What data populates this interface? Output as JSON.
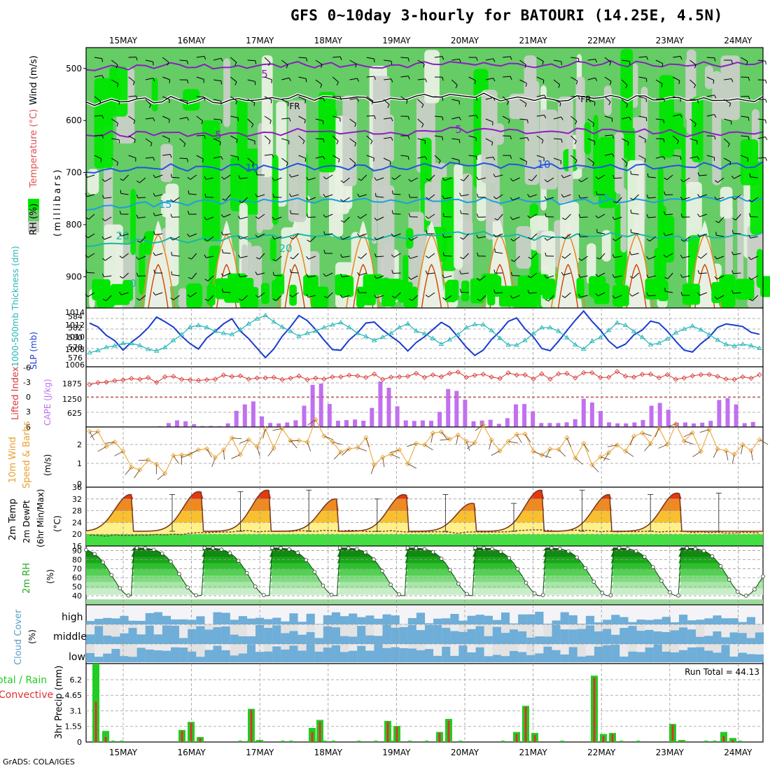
{
  "title": "GFS 0~10day 3-hourly for BATOURI (14.25E, 4.5N)",
  "credit": "GrADS: COLA/IGES",
  "date_labels": [
    "15MAY",
    "16MAY",
    "17MAY",
    "18MAY",
    "19MAY",
    "20MAY",
    "21MAY",
    "22MAY",
    "23MAY",
    "24MAY"
  ],
  "colors": {
    "rh_bright": "#00e600",
    "rh_mid": "#66cc66",
    "rh_low": "#c8cfc6",
    "rh_pale": "#e9f0e3",
    "temp_purple": "#8a1fc0",
    "temp_blue": "#2255dd",
    "temp_cyan": "#1aa0dd",
    "temp_teal": "#18b8a0",
    "temp_orange": "#e88a22",
    "freezing": "#000000",
    "slp": "#1a3ccf",
    "thickness": "#22b5b5",
    "lifted_index": "#d83a3a",
    "cape_bar": "#c070f0",
    "wind": "#e8a030",
    "cloud_blue": "#6eaed8",
    "cloud_grey": "#e2e2e2",
    "cloud_white": "#f4f4f8",
    "precip_total": "#22cc22",
    "precip_conv": "#e03030"
  },
  "panels": {
    "cross_section": {
      "ylabel": "(millibars)",
      "label_rh": "RH (%)",
      "label_temp": "Temperature (°C)",
      "label_wind": "Wind (m/s)",
      "yticks": [
        "500",
        "600",
        "700",
        "800",
        "900"
      ],
      "contour_labels": [
        "5",
        "5",
        "5",
        "10",
        "10",
        "15",
        "15",
        "20",
        "20",
        "0",
        "FR",
        "FR"
      ]
    },
    "slp": {
      "label_thick": "1000-500mb Thickness (dm)",
      "label_slp": "SLP (mb)",
      "left_ticks": [
        "584",
        "582",
        "580",
        "578",
        "576"
      ],
      "right_ticks": [
        "1014",
        "1012",
        "1010",
        "1008",
        "1006"
      ]
    },
    "cape": {
      "label_li": "Lifted Index",
      "label_cape": "CAPE (J/kg)",
      "left_ticks": [
        "-6",
        "-3",
        "0",
        "3",
        "6"
      ],
      "right_ticks": [
        "1875",
        "1250",
        "625"
      ]
    },
    "wind10": {
      "label_a": "10m Wind",
      "label_b": "Speed & Barbs",
      "unit": "(m/s)",
      "ticks": [
        "2",
        "1",
        "0"
      ]
    },
    "temp": {
      "label_a": "2m Temp",
      "label_b": "2m DewPt",
      "label_c": "(6hr Min/Max)",
      "unit": "(°C)",
      "ticks": [
        "36",
        "32",
        "28",
        "24",
        "20",
        "16"
      ]
    },
    "rh": {
      "label": "2m RH",
      "unit": "(%)",
      "ticks": [
        "90",
        "80",
        "70",
        "60",
        "50",
        "40"
      ]
    },
    "cloud": {
      "label": "Cloud Cover",
      "unit": "(%)",
      "levels": [
        "high",
        "middle",
        "low"
      ]
    },
    "precip": {
      "label_total": "Total / Rain",
      "label_conv": "Convective",
      "ylabel": "3hr Precip (mm)",
      "ticks": [
        "6.2",
        "4.65",
        "3.1",
        "1.55",
        "0"
      ],
      "run_total": "Run Total = 44.13"
    }
  },
  "chart_data": [
    {
      "type": "heatmap",
      "name": "cross-section",
      "ylim_mb": [
        960,
        460
      ],
      "temp_contours": [
        {
          "value": -5,
          "mb": [
            500,
            495,
            498,
            492,
            497,
            488,
            495,
            490,
            494,
            490
          ]
        },
        {
          "value": 0,
          "mb": [
            565,
            560,
            562,
            555,
            560,
            552,
            560,
            555,
            560,
            560
          ]
        },
        {
          "value": 5,
          "mb": [
            628,
            624,
            627,
            620,
            625,
            618,
            622,
            620,
            625,
            625
          ]
        },
        {
          "value": 10,
          "mb": [
            700,
            690,
            690,
            688,
            690,
            685,
            688,
            690,
            688,
            685
          ]
        },
        {
          "value": 15,
          "mb": [
            770,
            758,
            755,
            752,
            755,
            752,
            755,
            755,
            752,
            750
          ]
        },
        {
          "value": 20,
          "mb": [
            840,
            830,
            825,
            820,
            828,
            815,
            825,
            820,
            825,
            820
          ]
        }
      ]
    },
    {
      "type": "line",
      "name": "slp-thickness",
      "x": [
        "15MAY 00Z",
        "15MAY 12Z",
        "16MAY 00Z",
        "16MAY 12Z",
        "17MAY 00Z",
        "17MAY 12Z",
        "18MAY 00Z",
        "18MAY 12Z",
        "19MAY 00Z",
        "19MAY 12Z",
        "20MAY 00Z",
        "20MAY 12Z",
        "21MAY 00Z",
        "21MAY 12Z",
        "22MAY 00Z",
        "22MAY 12Z",
        "23MAY 00Z",
        "23MAY 12Z",
        "24MAY 00Z",
        "24MAY 12Z"
      ],
      "series": [
        {
          "values": [
            1012.5,
            1008.0,
            1013.5,
            1008.0,
            1013.0,
            1006.5,
            1013.8,
            1007.5,
            1013.0,
            1008.0,
            1012.5,
            1007.0,
            1013.5,
            1007.5,
            1014.0,
            1008.0,
            1013.0,
            1007.0,
            1012.5,
            1010.5
          ]
        },
        {
          "values": [
            577.5,
            579.0,
            578.0,
            582.0,
            580.5,
            583.5,
            580.0,
            582.5,
            579.5,
            582.0,
            579.0,
            582.5,
            578.5,
            582.0,
            578.0,
            582.5,
            578.5,
            582.0,
            579.0,
            578.5
          ]
        }
      ],
      "ylim_slp": [
        1006,
        1014
      ],
      "ylim_thickness": [
        576,
        584
      ]
    },
    {
      "type": "bar",
      "name": "cape-li",
      "x": [
        "15MAY",
        "16MAY",
        "17MAY",
        "18MAY",
        "19MAY",
        "20MAY",
        "21MAY",
        "22MAY",
        "23MAY",
        "24MAY"
      ],
      "series": [
        {
          "values": [
            0,
            250,
            1050,
            1750,
            1720,
            1720,
            960,
            1120,
            1100,
            1150
          ]
        },
        {
          "values": [
            -3.0,
            -3.5,
            -4.0,
            -4.0,
            -4.0,
            -4.5,
            -4.0,
            -4.5,
            -4.0,
            -4.0
          ]
        }
      ],
      "ylim_cape": [
        0,
        2250
      ],
      "ylim_li": [
        6,
        -6
      ]
    },
    {
      "type": "line",
      "name": "wind10",
      "x": [
        "15MAY",
        "16MAY",
        "17MAY",
        "18MAY",
        "19MAY",
        "20MAY",
        "21MAY",
        "22MAY",
        "23MAY",
        "24MAY"
      ],
      "series": [
        {
          "values": [
            2.2,
            0.9,
            1.9,
            2.7,
            1.3,
            2.6,
            1.9,
            1.5,
            2.6,
            1.6
          ]
        }
      ],
      "ylim": [
        0,
        2.8
      ]
    },
    {
      "type": "area",
      "name": "temp",
      "x": [
        "15MAY",
        "16MAY",
        "17MAY",
        "18MAY",
        "19MAY",
        "20MAY",
        "21MAY",
        "22MAY",
        "23MAY",
        "24MAY"
      ],
      "series": [
        {
          "values": [
            33.5,
            34.5,
            35.0,
            32.0,
            33.5,
            30.5,
            35.0,
            33.5,
            34.0,
            21.0
          ]
        },
        {
          "values": [
            19.5,
            19.8,
            21.0,
            21.2,
            21.0,
            20.5,
            21.3,
            21.0,
            20.8,
            20.5
          ]
        }
      ],
      "ylim": [
        16,
        36
      ]
    },
    {
      "type": "area",
      "name": "rh",
      "x": [
        "15MAY",
        "16MAY",
        "17MAY",
        "18MAY",
        "19MAY",
        "20MAY",
        "21MAY",
        "22MAY",
        "23MAY",
        "24MAY"
      ],
      "series": [
        {
          "values": [
            94,
            40,
            38,
            38,
            40,
            40,
            40,
            38,
            40,
            40
          ]
        }
      ],
      "ylim": [
        30,
        95
      ]
    },
    {
      "type": "heatmap",
      "name": "cloud",
      "x": [
        "15MAY",
        "16MAY",
        "17MAY",
        "18MAY",
        "19MAY",
        "20MAY",
        "21MAY",
        "22MAY",
        "23MAY",
        "24MAY"
      ]
    },
    {
      "type": "bar",
      "name": "precip",
      "x": [
        "15MAY 00Z",
        "15MAY 03Z",
        "16MAY 15Z",
        "16MAY 18Z",
        "16MAY 21Z",
        "17MAY 09Z",
        "17MAY 12Z",
        "18MAY 12Z",
        "18MAY 15Z",
        "19MAY 12Z",
        "19MAY 15Z",
        "20MAY 12Z",
        "20MAY 15Z",
        "21MAY 12Z",
        "21MAY 15Z",
        "21MAY 18Z",
        "22MAY 12Z",
        "22MAY 15Z",
        "22MAY 18Z",
        "23MAY 12Z",
        "23MAY 15Z",
        "24MAY 09Z",
        "24MAY 12Z"
      ],
      "series": [
        {
          "values": [
            7.8,
            1.1,
            1.2,
            2.0,
            0.5,
            3.3,
            0.2,
            1.4,
            2.2,
            2.1,
            1.6,
            1.0,
            2.3,
            1.0,
            3.6,
            0.9,
            6.6,
            0.8,
            0.9,
            1.8,
            0.2,
            1.0,
            0.4
          ]
        },
        {
          "values": [
            4.0,
            0.5,
            1.1,
            1.9,
            0.4,
            3.2,
            0.1,
            1.0,
            2.0,
            2.0,
            1.5,
            0.9,
            2.1,
            0.8,
            3.5,
            0.7,
            6.4,
            0.6,
            0.8,
            1.7,
            0.1,
            0.6,
            0.2
          ]
        }
      ],
      "ylim": [
        0,
        7.8
      ]
    }
  ]
}
